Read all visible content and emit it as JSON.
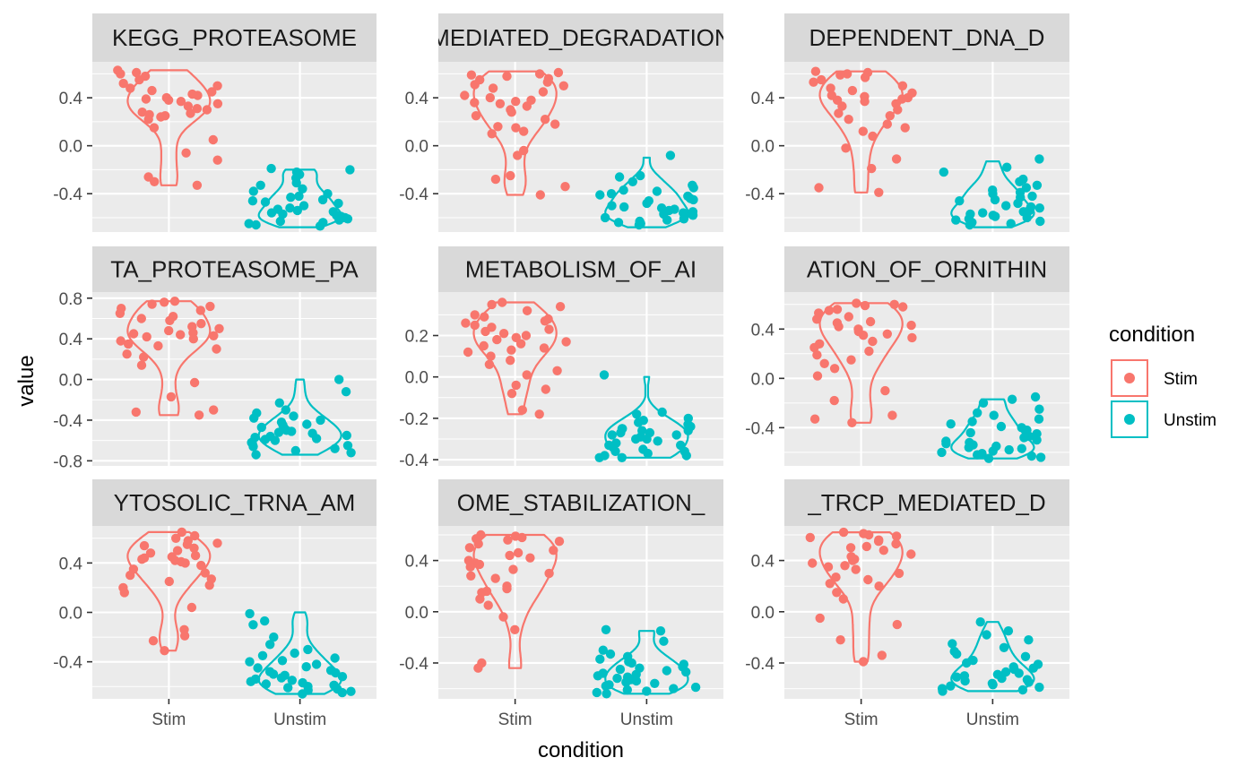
{
  "chart_data": {
    "type": "violin",
    "xlabel": "condition",
    "ylabel": "value",
    "legend": {
      "title": "condition",
      "position": "right",
      "entries": [
        {
          "label": "Stim",
          "color": "#F8766D"
        },
        {
          "label": "Unstim",
          "color": "#00BFC4"
        }
      ]
    },
    "categories": [
      "Stim",
      "Unstim"
    ],
    "panels": [
      {
        "strip": "KEGG_PROTEASOME",
        "yticks": [
          "0.4",
          "0.0",
          "-0.4"
        ],
        "ytick_values": [
          0.4,
          0.0,
          -0.4
        ],
        "ylim": [
          -0.72,
          0.7
        ],
        "series": [
          {
            "name": "Stim",
            "violin_range": [
              -0.33,
              0.63
            ],
            "points": [
              0.63,
              0.61,
              0.6,
              0.58,
              0.55,
              0.52,
              0.5,
              0.48,
              0.46,
              0.45,
              0.43,
              0.42,
              0.4,
              0.39,
              0.38,
              0.37,
              0.35,
              0.33,
              0.31,
              0.3,
              0.28,
              0.27,
              0.26,
              0.25,
              0.24,
              0.22,
              0.15,
              0.05,
              -0.06,
              -0.12,
              -0.26,
              -0.3,
              -0.33
            ]
          },
          {
            "name": "Unstim",
            "violin_range": [
              -0.68,
              -0.2
            ],
            "points": [
              -0.19,
              -0.2,
              -0.22,
              -0.24,
              -0.27,
              -0.31,
              -0.33,
              -0.36,
              -0.38,
              -0.4,
              -0.42,
              -0.43,
              -0.45,
              -0.46,
              -0.47,
              -0.48,
              -0.5,
              -0.52,
              -0.53,
              -0.54,
              -0.55,
              -0.56,
              -0.57,
              -0.58,
              -0.59,
              -0.6,
              -0.61,
              -0.62,
              -0.63,
              -0.64,
              -0.65,
              -0.66,
              -0.67
            ]
          }
        ]
      },
      {
        "strip": "MEDIATED_DEGRADATION",
        "yticks": [
          "0.4",
          "0.0",
          "-0.4"
        ],
        "ytick_values": [
          0.4,
          0.0,
          -0.4
        ],
        "ylim": [
          -0.72,
          0.7
        ],
        "series": [
          {
            "name": "Stim",
            "violin_range": [
              -0.41,
              0.62
            ],
            "points": [
              0.61,
              0.6,
              0.59,
              0.58,
              0.56,
              0.55,
              0.53,
              0.51,
              0.5,
              0.48,
              0.45,
              0.42,
              0.4,
              0.38,
              0.37,
              0.36,
              0.35,
              0.33,
              0.3,
              0.28,
              0.25,
              0.22,
              0.18,
              0.16,
              0.15,
              0.12,
              0.1,
              -0.04,
              -0.08,
              -0.25,
              -0.28,
              -0.34,
              -0.41
            ]
          },
          {
            "name": "Unstim",
            "violin_range": [
              -0.68,
              -0.1
            ],
            "points": [
              -0.08,
              -0.25,
              -0.26,
              -0.3,
              -0.33,
              -0.35,
              -0.37,
              -0.38,
              -0.4,
              -0.41,
              -0.42,
              -0.44,
              -0.45,
              -0.46,
              -0.48,
              -0.5,
              -0.51,
              -0.52,
              -0.53,
              -0.54,
              -0.55,
              -0.56,
              -0.57,
              -0.58,
              -0.59,
              -0.6,
              -0.61,
              -0.62,
              -0.63,
              -0.64,
              -0.65,
              -0.66
            ]
          }
        ]
      },
      {
        "strip": "DEPENDENT_DNA_D",
        "yticks": [
          "0.4",
          "0.0",
          "-0.4"
        ],
        "ytick_values": [
          0.4,
          0.0,
          -0.4
        ],
        "ylim": [
          -0.72,
          0.7
        ],
        "series": [
          {
            "name": "Stim",
            "violin_range": [
              -0.39,
              0.62
            ],
            "points": [
              0.62,
              0.61,
              0.6,
              0.59,
              0.57,
              0.55,
              0.53,
              0.5,
              0.48,
              0.46,
              0.44,
              0.42,
              0.41,
              0.4,
              0.39,
              0.38,
              0.37,
              0.35,
              0.33,
              0.3,
              0.27,
              0.25,
              0.22,
              0.18,
              0.15,
              0.12,
              0.08,
              -0.02,
              -0.11,
              -0.19,
              -0.35,
              -0.39
            ]
          },
          {
            "name": "Unstim",
            "violin_range": [
              -0.68,
              -0.13
            ],
            "points": [
              -0.11,
              -0.18,
              -0.22,
              -0.28,
              -0.3,
              -0.33,
              -0.35,
              -0.37,
              -0.39,
              -0.4,
              -0.42,
              -0.43,
              -0.45,
              -0.46,
              -0.48,
              -0.5,
              -0.51,
              -0.52,
              -0.53,
              -0.54,
              -0.55,
              -0.56,
              -0.57,
              -0.58,
              -0.59,
              -0.6,
              -0.61,
              -0.62,
              -0.63,
              -0.64,
              -0.65,
              -0.66
            ]
          }
        ]
      },
      {
        "strip": "TA_PROTEASOME_PA",
        "yticks": [
          "0.8",
          "0.4",
          "0.0",
          "-0.4",
          "-0.8"
        ],
        "ytick_values": [
          0.8,
          0.4,
          0.0,
          -0.4,
          -0.8
        ],
        "ylim": [
          -0.85,
          0.86
        ],
        "series": [
          {
            "name": "Stim",
            "violin_range": [
              -0.35,
              0.77
            ],
            "points": [
              0.77,
              0.76,
              0.74,
              0.72,
              0.7,
              0.68,
              0.65,
              0.62,
              0.6,
              0.58,
              0.55,
              0.52,
              0.5,
              0.48,
              0.46,
              0.45,
              0.44,
              0.43,
              0.42,
              0.4,
              0.38,
              0.35,
              0.33,
              0.3,
              0.25,
              0.22,
              0.14,
              -0.03,
              -0.17,
              -0.3,
              -0.32,
              -0.35
            ]
          },
          {
            "name": "Unstim",
            "violin_range": [
              -0.74,
              0.0
            ],
            "points": [
              0.0,
              -0.12,
              -0.23,
              -0.3,
              -0.33,
              -0.36,
              -0.38,
              -0.4,
              -0.42,
              -0.44,
              -0.45,
              -0.47,
              -0.48,
              -0.5,
              -0.51,
              -0.52,
              -0.53,
              -0.55,
              -0.56,
              -0.57,
              -0.58,
              -0.59,
              -0.6,
              -0.62,
              -0.63,
              -0.65,
              -0.66,
              -0.68,
              -0.7,
              -0.72,
              -0.74
            ]
          }
        ]
      },
      {
        "strip": "METABOLISM_OF_AI",
        "yticks": [
          "0.2",
          "0.0",
          "-0.2",
          "-0.4"
        ],
        "ytick_values": [
          0.2,
          0.0,
          -0.2,
          -0.4
        ],
        "ylim": [
          -0.43,
          0.41
        ],
        "series": [
          {
            "name": "Stim",
            "violin_range": [
              -0.18,
              0.36
            ],
            "points": [
              0.36,
              0.35,
              0.34,
              0.32,
              0.3,
              0.29,
              0.28,
              0.27,
              0.26,
              0.25,
              0.24,
              0.23,
              0.22,
              0.21,
              0.2,
              0.19,
              0.18,
              0.17,
              0.16,
              0.15,
              0.14,
              0.13,
              0.12,
              0.1,
              0.08,
              0.06,
              0.03,
              0.01,
              -0.04,
              -0.06,
              -0.08,
              -0.16,
              -0.18
            ]
          },
          {
            "name": "Unstim",
            "violin_range": [
              -0.39,
              0.0
            ],
            "points": [
              0.01,
              -0.17,
              -0.18,
              -0.2,
              -0.21,
              -0.22,
              -0.23,
              -0.24,
              -0.25,
              -0.26,
              -0.27,
              -0.28,
              -0.29,
              -0.3,
              -0.31,
              -0.32,
              -0.33,
              -0.34,
              -0.35,
              -0.36,
              -0.37,
              -0.38,
              -0.39,
              -0.39,
              -0.38,
              -0.36,
              -0.33,
              -0.3,
              -0.28,
              -0.27,
              -0.26,
              -0.25
            ]
          }
        ]
      },
      {
        "strip": "ATION_OF_ORNITHIN",
        "yticks": [
          "0.4",
          "0.0",
          "-0.4"
        ],
        "ytick_values": [
          0.4,
          0.0,
          -0.4
        ],
        "ylim": [
          -0.71,
          0.7
        ],
        "series": [
          {
            "name": "Stim",
            "violin_range": [
              -0.36,
              0.61
            ],
            "points": [
              0.61,
              0.6,
              0.59,
              0.58,
              0.56,
              0.55,
              0.53,
              0.5,
              0.48,
              0.46,
              0.45,
              0.43,
              0.42,
              0.4,
              0.38,
              0.36,
              0.35,
              0.33,
              0.3,
              0.28,
              0.25,
              0.22,
              0.19,
              0.15,
              0.12,
              0.08,
              0.02,
              -0.1,
              -0.18,
              -0.3,
              -0.33,
              -0.36
            ]
          },
          {
            "name": "Unstim",
            "violin_range": [
              -0.65,
              -0.17
            ],
            "points": [
              -0.15,
              -0.17,
              -0.2,
              -0.25,
              -0.28,
              -0.3,
              -0.33,
              -0.35,
              -0.37,
              -0.39,
              -0.4,
              -0.42,
              -0.44,
              -0.45,
              -0.47,
              -0.48,
              -0.5,
              -0.51,
              -0.52,
              -0.53,
              -0.54,
              -0.55,
              -0.56,
              -0.57,
              -0.58,
              -0.59,
              -0.6,
              -0.61,
              -0.62,
              -0.63,
              -0.64,
              -0.65
            ]
          }
        ]
      },
      {
        "strip": "YTOSOLIC_TRNA_AM",
        "yticks": [
          "0.4",
          "0.0",
          "-0.4"
        ],
        "ytick_values": [
          0.4,
          0.0,
          -0.4
        ],
        "ylim": [
          -0.7,
          0.7
        ],
        "series": [
          {
            "name": "Stim",
            "violin_range": [
              -0.31,
              0.65
            ],
            "points": [
              0.65,
              0.62,
              0.6,
              0.58,
              0.56,
              0.55,
              0.54,
              0.52,
              0.5,
              0.48,
              0.46,
              0.45,
              0.44,
              0.43,
              0.42,
              0.41,
              0.4,
              0.38,
              0.35,
              0.32,
              0.3,
              0.27,
              0.25,
              0.22,
              0.2,
              0.16,
              0.04,
              -0.14,
              -0.19,
              -0.23,
              -0.31
            ]
          },
          {
            "name": "Unstim",
            "violin_range": [
              -0.66,
              0.0
            ],
            "points": [
              -0.01,
              -0.07,
              -0.1,
              -0.2,
              -0.26,
              -0.3,
              -0.33,
              -0.35,
              -0.37,
              -0.39,
              -0.4,
              -0.42,
              -0.44,
              -0.45,
              -0.47,
              -0.48,
              -0.49,
              -0.5,
              -0.51,
              -0.52,
              -0.53,
              -0.54,
              -0.55,
              -0.56,
              -0.57,
              -0.58,
              -0.59,
              -0.6,
              -0.61,
              -0.62,
              -0.63,
              -0.64,
              -0.65,
              -0.66
            ]
          }
        ]
      },
      {
        "strip": "OME_STABILIZATION_",
        "yticks": [
          "0.4",
          "0.0",
          "-0.4"
        ],
        "ytick_values": [
          0.4,
          0.0,
          -0.4
        ],
        "ylim": [
          -0.68,
          0.67
        ],
        "series": [
          {
            "name": "Stim",
            "violin_range": [
              -0.44,
              0.6
            ],
            "points": [
              0.6,
              0.59,
              0.58,
              0.57,
              0.56,
              0.55,
              0.53,
              0.5,
              0.48,
              0.46,
              0.44,
              0.42,
              0.4,
              0.38,
              0.37,
              0.35,
              0.33,
              0.3,
              0.28,
              0.26,
              0.2,
              0.18,
              0.16,
              0.15,
              0.1,
              0.05,
              -0.04,
              -0.14,
              -0.4,
              -0.44
            ]
          },
          {
            "name": "Unstim",
            "violin_range": [
              -0.64,
              -0.15
            ],
            "points": [
              -0.14,
              -0.15,
              -0.23,
              -0.3,
              -0.33,
              -0.35,
              -0.37,
              -0.39,
              -0.4,
              -0.41,
              -0.43,
              -0.44,
              -0.45,
              -0.46,
              -0.47,
              -0.48,
              -0.49,
              -0.5,
              -0.51,
              -0.52,
              -0.53,
              -0.54,
              -0.55,
              -0.56,
              -0.57,
              -0.58,
              -0.59,
              -0.6,
              -0.61,
              -0.62,
              -0.63,
              -0.64
            ]
          }
        ]
      },
      {
        "strip": "_TRCP_MEDIATED_D",
        "yticks": [
          "0.4",
          "0.0",
          "-0.4"
        ],
        "ytick_values": [
          0.4,
          0.0,
          -0.4
        ],
        "ylim": [
          -0.68,
          0.67
        ],
        "series": [
          {
            "name": "Stim",
            "violin_range": [
              -0.39,
              0.62
            ],
            "points": [
              0.62,
              0.61,
              0.6,
              0.59,
              0.58,
              0.56,
              0.55,
              0.53,
              0.51,
              0.5,
              0.48,
              0.45,
              0.43,
              0.41,
              0.4,
              0.38,
              0.36,
              0.35,
              0.33,
              0.3,
              0.27,
              0.25,
              0.22,
              0.2,
              0.15,
              0.1,
              -0.05,
              -0.1,
              -0.22,
              -0.34,
              -0.39
            ]
          },
          {
            "name": "Unstim",
            "violin_range": [
              -0.62,
              -0.08
            ],
            "points": [
              -0.08,
              -0.15,
              -0.18,
              -0.22,
              -0.25,
              -0.28,
              -0.31,
              -0.33,
              -0.35,
              -0.38,
              -0.4,
              -0.41,
              -0.43,
              -0.44,
              -0.45,
              -0.47,
              -0.48,
              -0.49,
              -0.5,
              -0.51,
              -0.52,
              -0.53,
              -0.54,
              -0.55,
              -0.56,
              -0.57,
              -0.58,
              -0.59,
              -0.6,
              -0.61,
              -0.62
            ]
          }
        ]
      }
    ]
  }
}
